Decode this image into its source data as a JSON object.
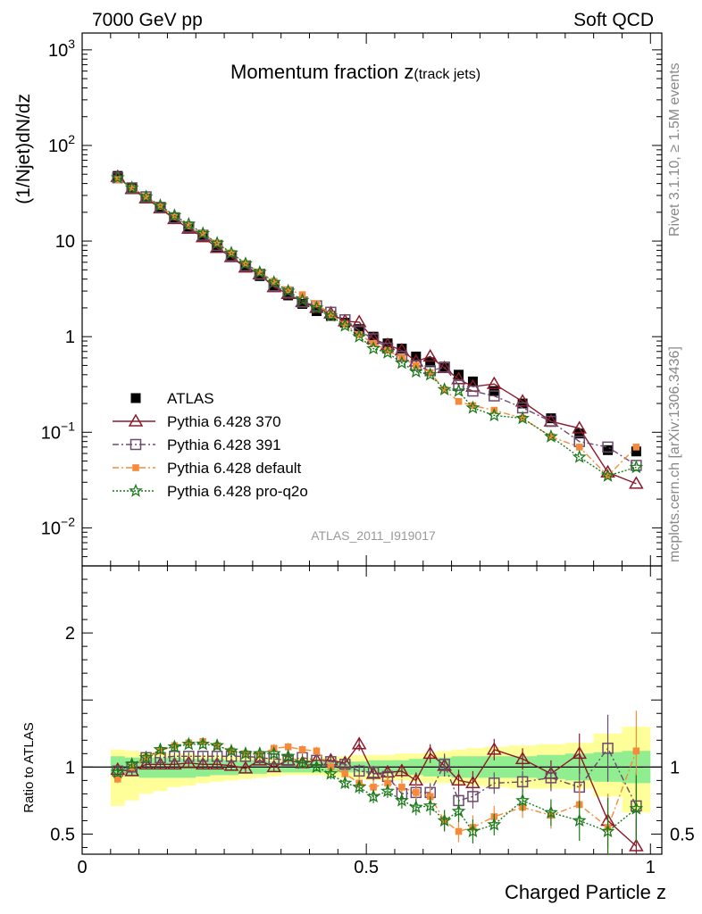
{
  "header": {
    "left": "7000 GeV pp",
    "right": "Soft QCD"
  },
  "side_labels": {
    "rivet": "Rivet 3.1.10, ≥ 1.5M events",
    "mcplots": "mcplots.cern.ch [arXiv:1306.3436]"
  },
  "colors": {
    "atlas": "#000000",
    "p370": "#8b1a2a",
    "p391": "#6b4b6b",
    "pdefault": "#f58a3a",
    "pq2o": "#1a7a1a",
    "band_inner": "#90ee90",
    "band_outer": "#ffff99"
  },
  "chart_data": [
    {
      "type": "scatter",
      "panel": "main",
      "title_main": "Momentum fraction z",
      "title_sub": "(track jets)",
      "ylabel": "(1/Njet)dN/dz",
      "watermark": "ATLAS_2011_I919017",
      "yscale": "log",
      "xlim": [
        0,
        1.02
      ],
      "ylim": [
        0.004,
        1500
      ],
      "y_ticks": [
        {
          "v": 0.01,
          "base": "10",
          "exp": "−2"
        },
        {
          "v": 0.1,
          "base": "10",
          "exp": "−1"
        },
        {
          "v": 1,
          "base": "1",
          "exp": ""
        },
        {
          "v": 10,
          "base": "10",
          "exp": ""
        },
        {
          "v": 100,
          "base": "10",
          "exp": "2"
        },
        {
          "v": 1000,
          "base": "10",
          "exp": "3"
        }
      ],
      "x": [
        0.0625,
        0.0875,
        0.1125,
        0.1375,
        0.1625,
        0.1875,
        0.2125,
        0.2375,
        0.2625,
        0.2875,
        0.3125,
        0.3375,
        0.3625,
        0.3875,
        0.4125,
        0.4375,
        0.4625,
        0.4875,
        0.5125,
        0.5375,
        0.5625,
        0.5875,
        0.6125,
        0.6375,
        0.6625,
        0.6875,
        0.725,
        0.775,
        0.825,
        0.875,
        0.925,
        0.975
      ],
      "series": [
        {
          "name": "ATLAS",
          "key": "atlas",
          "marker": "filled-square",
          "line": "none",
          "values": [
            48,
            36,
            28,
            22,
            17,
            13.5,
            11,
            8.5,
            6.8,
            5.3,
            4.3,
            3.3,
            2.7,
            2.2,
            1.85,
            1.65,
            1.4,
            1.2,
            1.0,
            0.85,
            0.75,
            0.62,
            0.54,
            0.47,
            0.4,
            0.34,
            0.27,
            0.2,
            0.14,
            0.097,
            0.065,
            0.063
          ]
        },
        {
          "name": "Pythia 6.428 370",
          "key": "p370",
          "marker": "open-triangle",
          "line": "solid",
          "values": [
            47,
            35,
            28,
            22,
            17,
            13.5,
            11,
            8.5,
            6.8,
            5.3,
            4.5,
            3.3,
            2.8,
            2.3,
            2.0,
            1.75,
            1.45,
            1.42,
            0.95,
            0.82,
            0.72,
            0.55,
            0.62,
            0.47,
            0.36,
            0.3,
            0.32,
            0.21,
            0.13,
            0.11,
            0.038,
            0.029
          ]
        },
        {
          "name": "Pythia 6.428 391",
          "key": "p391",
          "marker": "open-square",
          "line": "dashdot",
          "values": [
            46,
            36,
            29,
            22.5,
            17.5,
            14,
            11.5,
            9,
            7,
            5.5,
            4.5,
            3.4,
            2.9,
            2.3,
            2.1,
            1.8,
            1.5,
            1.15,
            0.95,
            0.76,
            0.62,
            0.5,
            0.44,
            0.48,
            0.31,
            0.27,
            0.24,
            0.18,
            0.13,
            0.08,
            0.07,
            0.045
          ]
        },
        {
          "name": "Pythia 6.428 default",
          "key": "pdefault",
          "marker": "filled-square-small",
          "line": "dashdot",
          "values": [
            44,
            36,
            29,
            23,
            18,
            14.5,
            12,
            9.5,
            7.5,
            5.8,
            4.7,
            3.8,
            3.1,
            2.75,
            2.2,
            1.7,
            1.35,
            1.05,
            0.85,
            0.72,
            0.6,
            0.5,
            0.42,
            0.28,
            0.21,
            0.19,
            0.17,
            0.14,
            0.09,
            0.07,
            0.035,
            0.07
          ]
        },
        {
          "name": "Pythia 6.428 pro-q2o",
          "key": "pq2o",
          "marker": "star",
          "line": "dotted",
          "values": [
            46,
            36,
            29,
            23.5,
            18.5,
            15,
            12,
            9.5,
            7.5,
            5.8,
            4.7,
            3.7,
            3.0,
            2.4,
            2.0,
            1.65,
            1.3,
            1.0,
            0.75,
            0.68,
            0.53,
            0.43,
            0.4,
            0.28,
            0.27,
            0.18,
            0.15,
            0.14,
            0.09,
            0.055,
            0.035,
            0.043
          ]
        }
      ],
      "legend_position": "lower-left"
    },
    {
      "type": "scatter",
      "panel": "ratio",
      "ylabel": "Ratio to ATLAS",
      "xlabel": "Charged Particle z",
      "ylim": [
        0.35,
        2.5
      ],
      "xlim": [
        0,
        1.02
      ],
      "x_ticks": [
        {
          "v": 0,
          "label": "0"
        },
        {
          "v": 0.5,
          "label": "0.5"
        },
        {
          "v": 1,
          "label": "1"
        }
      ],
      "y_ticks": [
        {
          "v": 0.5,
          "label": "0.5"
        },
        {
          "v": 1,
          "label": "1"
        },
        {
          "v": 2,
          "label": "2"
        }
      ],
      "right_y_labels": [
        "0.5",
        "1"
      ],
      "band_inner": [
        [
          0.95,
          1.08
        ],
        [
          0.93,
          1.07
        ],
        [
          0.92,
          1.07
        ],
        [
          0.92,
          1.07
        ],
        [
          0.92,
          1.07
        ],
        [
          0.92,
          1.06
        ],
        [
          0.93,
          1.06
        ],
        [
          0.94,
          1.06
        ],
        [
          0.94,
          1.05
        ],
        [
          0.95,
          1.05
        ],
        [
          0.95,
          1.05
        ],
        [
          0.96,
          1.04
        ],
        [
          0.96,
          1.04
        ],
        [
          0.96,
          1.04
        ],
        [
          0.96,
          1.04
        ],
        [
          0.96,
          1.04
        ],
        [
          0.96,
          1.04
        ],
        [
          0.96,
          1.04
        ],
        [
          0.95,
          1.05
        ],
        [
          0.95,
          1.05
        ],
        [
          0.95,
          1.05
        ],
        [
          0.94,
          1.06
        ],
        [
          0.93,
          1.07
        ],
        [
          0.93,
          1.07
        ],
        [
          0.92,
          1.08
        ],
        [
          0.92,
          1.08
        ],
        [
          0.92,
          1.08
        ],
        [
          0.92,
          1.08
        ],
        [
          0.91,
          1.09
        ],
        [
          0.9,
          1.1
        ],
        [
          0.89,
          1.11
        ],
        [
          0.88,
          1.12
        ]
      ],
      "band_outer": [
        [
          0.71,
          1.13
        ],
        [
          0.75,
          1.12
        ],
        [
          0.8,
          1.11
        ],
        [
          0.82,
          1.11
        ],
        [
          0.85,
          1.1
        ],
        [
          0.86,
          1.1
        ],
        [
          0.88,
          1.09
        ],
        [
          0.89,
          1.09
        ],
        [
          0.9,
          1.08
        ],
        [
          0.91,
          1.08
        ],
        [
          0.92,
          1.07
        ],
        [
          0.93,
          1.07
        ],
        [
          0.94,
          1.07
        ],
        [
          0.94,
          1.07
        ],
        [
          0.94,
          1.07
        ],
        [
          0.93,
          1.08
        ],
        [
          0.92,
          1.08
        ],
        [
          0.91,
          1.09
        ],
        [
          0.9,
          1.09
        ],
        [
          0.9,
          1.09
        ],
        [
          0.9,
          1.1
        ],
        [
          0.89,
          1.1
        ],
        [
          0.88,
          1.11
        ],
        [
          0.88,
          1.12
        ],
        [
          0.87,
          1.13
        ],
        [
          0.86,
          1.14
        ],
        [
          0.85,
          1.15
        ],
        [
          0.84,
          1.16
        ],
        [
          0.84,
          1.17
        ],
        [
          0.84,
          1.18
        ],
        [
          0.78,
          1.25
        ],
        [
          0.66,
          1.3
        ]
      ],
      "series": [
        {
          "key": "p370",
          "values": [
            0.98,
            0.97,
            1.02,
            1.02,
            1.02,
            1.03,
            1.02,
            1.02,
            1.01,
            0.99,
            1.05,
            1.0,
            1.05,
            1.03,
            1.05,
            1.05,
            1.03,
            1.17,
            0.95,
            0.96,
            0.97,
            0.9,
            1.1,
            1.01,
            0.9,
            0.88,
            1.13,
            1.06,
            0.95,
            1.1,
            0.6,
            0.41
          ],
          "err": [
            0.03,
            0.03,
            0.03,
            0.03,
            0.03,
            0.03,
            0.03,
            0.03,
            0.03,
            0.03,
            0.03,
            0.03,
            0.03,
            0.03,
            0.03,
            0.04,
            0.04,
            0.05,
            0.05,
            0.05,
            0.05,
            0.06,
            0.07,
            0.08,
            0.08,
            0.09,
            0.08,
            0.08,
            0.1,
            0.15,
            0.2,
            0.2
          ]
        },
        {
          "key": "p391",
          "values": [
            0.97,
            1.0,
            1.07,
            1.07,
            1.08,
            1.08,
            1.08,
            1.08,
            1.08,
            1.08,
            1.07,
            1.06,
            1.05,
            1.07,
            1.05,
            1.04,
            1.02,
            0.97,
            0.96,
            0.93,
            0.8,
            0.81,
            0.81,
            1.02,
            0.75,
            0.78,
            0.88,
            0.89,
            0.92,
            0.85,
            1.14,
            0.71
          ],
          "err": [
            0.03,
            0.03,
            0.03,
            0.03,
            0.03,
            0.03,
            0.03,
            0.03,
            0.03,
            0.03,
            0.03,
            0.03,
            0.03,
            0.03,
            0.03,
            0.04,
            0.04,
            0.05,
            0.05,
            0.05,
            0.06,
            0.06,
            0.07,
            0.08,
            0.08,
            0.09,
            0.08,
            0.08,
            0.1,
            0.15,
            0.25,
            0.25
          ]
        },
        {
          "key": "pdefault",
          "values": [
            0.91,
            1.0,
            1.07,
            1.12,
            1.16,
            1.18,
            1.19,
            1.16,
            1.12,
            1.1,
            1.09,
            1.14,
            1.15,
            1.13,
            1.12,
            1.0,
            0.95,
            0.88,
            0.85,
            0.88,
            0.85,
            0.81,
            0.78,
            0.6,
            0.52,
            0.55,
            0.63,
            0.7,
            0.64,
            0.72,
            0.55,
            1.12
          ],
          "err": [
            0.03,
            0.03,
            0.03,
            0.03,
            0.03,
            0.03,
            0.03,
            0.03,
            0.03,
            0.03,
            0.03,
            0.03,
            0.03,
            0.03,
            0.03,
            0.04,
            0.04,
            0.05,
            0.05,
            0.05,
            0.06,
            0.06,
            0.07,
            0.08,
            0.08,
            0.09,
            0.08,
            0.08,
            0.1,
            0.15,
            0.25,
            0.3
          ]
        },
        {
          "key": "pq2o",
          "values": [
            0.96,
            1.02,
            1.07,
            1.13,
            1.15,
            1.17,
            1.17,
            1.16,
            1.12,
            1.1,
            1.1,
            1.1,
            1.08,
            1.03,
            1.0,
            0.95,
            0.88,
            0.85,
            0.78,
            0.82,
            0.75,
            0.7,
            0.71,
            0.6,
            0.67,
            0.52,
            0.57,
            0.75,
            0.66,
            0.6,
            0.52,
            0.69
          ],
          "err": [
            0.03,
            0.03,
            0.03,
            0.03,
            0.03,
            0.03,
            0.03,
            0.03,
            0.03,
            0.03,
            0.03,
            0.03,
            0.03,
            0.03,
            0.03,
            0.04,
            0.04,
            0.05,
            0.05,
            0.05,
            0.06,
            0.06,
            0.07,
            0.08,
            0.08,
            0.09,
            0.08,
            0.08,
            0.1,
            0.15,
            0.25,
            0.25
          ]
        }
      ]
    }
  ]
}
